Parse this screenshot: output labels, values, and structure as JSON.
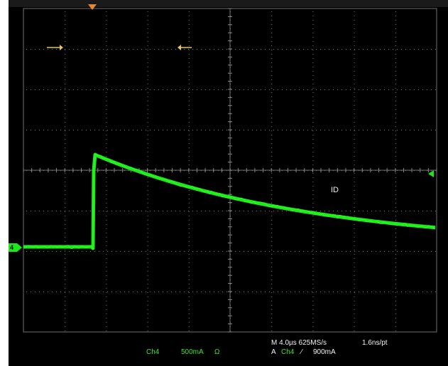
{
  "header": {
    "left": "",
    "center": "",
    "right": ""
  },
  "waveform": {
    "label": "ID",
    "channel_marker": "4",
    "colors": {
      "trace": "#1ee81a",
      "grid": "#8a8a8a",
      "background": "#000000",
      "cursor": "#e6c45a",
      "trigger": "#e8862e"
    }
  },
  "readout": {
    "channel": "Ch4",
    "scale": "500mA",
    "coupling": "Ω",
    "timebase": "M 4.0µs 625MS/s",
    "record": "1.6ns/pt",
    "trigger_prefix": "A",
    "trigger_channel": "Ch4",
    "trigger_slope": "⁄",
    "trigger_level": "900mA"
  },
  "icons": {
    "cursor_right": "arrow-right-icon",
    "cursor_left": "arrow-left-icon",
    "trigger_position": "trigger-position-icon",
    "trigger_level": "trigger-level-icon",
    "ground_marker": "channel-ground-marker-icon"
  }
}
